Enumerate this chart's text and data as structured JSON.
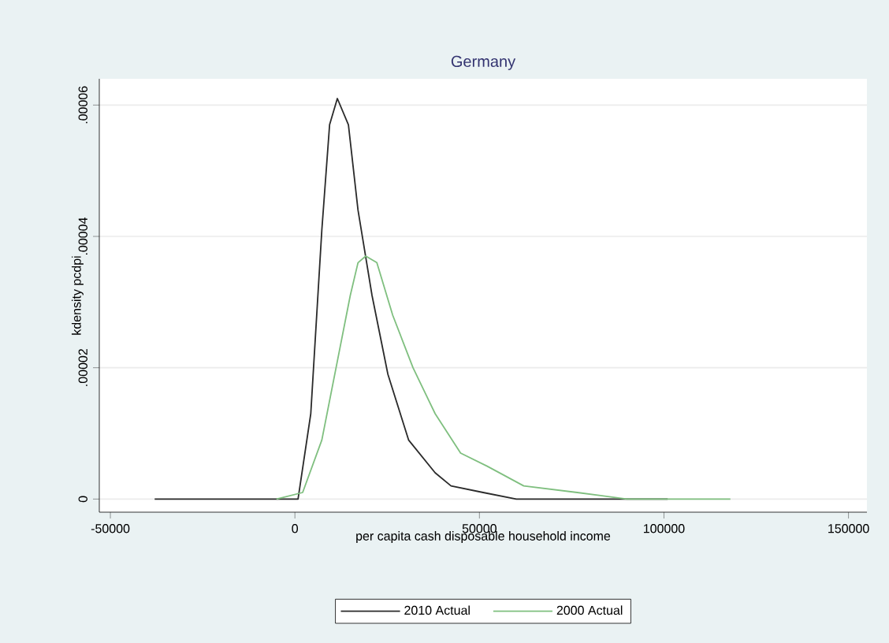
{
  "chart_data": {
    "type": "line",
    "title": "Germany",
    "xlabel": "per capita cash disposable household income",
    "ylabel": "kdensity pcdpi",
    "xlim": [
      -53000,
      155000
    ],
    "xticks": [
      -50000,
      0,
      50000,
      100000,
      150000
    ],
    "ylim": [
      -2e-06,
      6.4e-05
    ],
    "yticks": [
      0,
      {
        "value": 2e-05,
        "label": ".00002"
      },
      {
        "value": 4e-05,
        "label": ".00004"
      },
      {
        "value": 6e-05,
        "label": ".00006"
      }
    ],
    "grid": "y",
    "legend": "bottom",
    "series": [
      {
        "name": "2010 Actual",
        "color": "#2a2a2a",
        "x": [
          -38000,
          -3000,
          850,
          4300,
          7300,
          9400,
          11500,
          14500,
          17100,
          20900,
          25200,
          30800,
          38000,
          42300,
          51000,
          60000,
          80000,
          101000
        ],
        "values": [
          0,
          0,
          0,
          1.3e-05,
          4.1e-05,
          5.7e-05,
          6.1e-05,
          5.7e-05,
          4.4e-05,
          3.1e-05,
          1.9e-05,
          9e-06,
          4e-06,
          2e-06,
          1e-06,
          0,
          0,
          0
        ]
      },
      {
        "name": "2000 Actual",
        "color": "#7fbf7f",
        "x": [
          -5000,
          2100,
          7300,
          11500,
          15000,
          17100,
          19200,
          22200,
          26500,
          32000,
          38000,
          44900,
          52100,
          62000,
          76500,
          90000,
          118000
        ],
        "values": [
          0,
          1e-06,
          9e-06,
          2.1e-05,
          3.1e-05,
          3.6e-05,
          3.7e-05,
          3.6e-05,
          2.8e-05,
          2e-05,
          1.3e-05,
          7e-06,
          5e-06,
          2e-06,
          1e-06,
          0,
          0
        ]
      }
    ]
  }
}
